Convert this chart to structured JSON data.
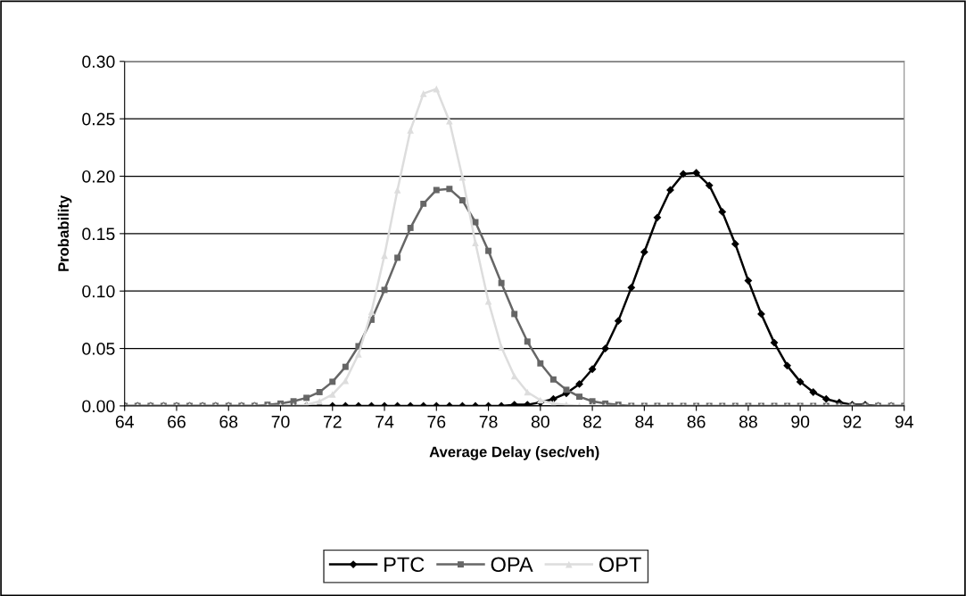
{
  "chart_data": {
    "type": "line",
    "xlabel": "Average Delay (sec/veh)",
    "ylabel": "Probability",
    "x": [
      64,
      64.5,
      65,
      65.5,
      66,
      66.5,
      67,
      67.5,
      68,
      68.5,
      69,
      69.5,
      70,
      70.5,
      71,
      71.5,
      72,
      72.5,
      73,
      73.5,
      74,
      74.5,
      75,
      75.5,
      76,
      76.5,
      77,
      77.5,
      78,
      78.5,
      79,
      79.5,
      80,
      80.5,
      81,
      81.5,
      82,
      82.5,
      83,
      83.5,
      84,
      84.5,
      85,
      85.5,
      86,
      86.5,
      87,
      87.5,
      88,
      88.5,
      89,
      89.5,
      90,
      90.5,
      91,
      91.5,
      92,
      92.5,
      93,
      93.5,
      94
    ],
    "series": [
      {
        "name": "PTC",
        "color": "#000000",
        "marker": "diamond",
        "values": [
          0,
          0,
          0,
          0,
          0,
          0,
          0,
          0,
          0,
          0,
          0,
          0,
          0,
          0,
          0,
          0,
          0,
          0,
          0,
          0,
          0,
          0,
          0,
          0,
          0,
          0,
          0,
          0,
          0,
          0,
          0.001,
          0.001,
          0.003,
          0.006,
          0.011,
          0.019,
          0.032,
          0.05,
          0.074,
          0.103,
          0.134,
          0.164,
          0.188,
          0.202,
          0.203,
          0.192,
          0.169,
          0.141,
          0.109,
          0.08,
          0.055,
          0.035,
          0.021,
          0.012,
          0.006,
          0.003,
          0.001,
          0.001,
          0,
          0,
          0
        ]
      },
      {
        "name": "OPA",
        "color": "#666666",
        "marker": "square",
        "values": [
          0,
          0,
          0,
          0,
          0,
          0,
          0,
          0,
          0,
          0,
          0,
          0.001,
          0.002,
          0.004,
          0.007,
          0.012,
          0.021,
          0.034,
          0.052,
          0.075,
          0.101,
          0.129,
          0.155,
          0.176,
          0.188,
          0.189,
          0.179,
          0.16,
          0.135,
          0.107,
          0.08,
          0.056,
          0.037,
          0.023,
          0.014,
          0.008,
          0.004,
          0.002,
          0.001,
          0,
          0,
          0,
          0,
          0,
          0,
          0,
          0,
          0,
          0,
          0,
          0,
          0,
          0,
          0,
          0,
          0,
          0,
          0,
          0,
          0,
          0
        ]
      },
      {
        "name": "OPT",
        "color": "#dddddd",
        "marker": "triangle",
        "values": [
          0,
          0,
          0,
          0,
          0,
          0,
          0,
          0,
          0,
          0,
          0,
          0,
          0,
          0,
          0.001,
          0.004,
          0.01,
          0.022,
          0.045,
          0.082,
          0.131,
          0.188,
          0.24,
          0.272,
          0.276,
          0.248,
          0.199,
          0.142,
          0.091,
          0.051,
          0.026,
          0.012,
          0.005,
          0.002,
          0.001,
          0,
          0,
          0,
          0,
          0,
          0,
          0,
          0,
          0,
          0,
          0,
          0,
          0,
          0,
          0,
          0,
          0,
          0,
          0,
          0,
          0,
          0,
          0,
          0,
          0,
          0
        ]
      }
    ],
    "xlim": [
      64,
      94
    ],
    "xticks": [
      64,
      66,
      68,
      70,
      72,
      74,
      76,
      78,
      80,
      82,
      84,
      86,
      88,
      90,
      92,
      94
    ],
    "ylim": [
      0,
      0.3
    ],
    "yticks": [
      {
        "value": 0,
        "label": "0.00"
      },
      {
        "value": 0.05,
        "label": "0.05"
      },
      {
        "value": 0.1,
        "label": "0.10"
      },
      {
        "value": 0.15,
        "label": "0.15"
      },
      {
        "value": 0.2,
        "label": "0.20"
      },
      {
        "value": 0.25,
        "label": "0.25"
      },
      {
        "value": 0.3,
        "label": "0.30"
      }
    ],
    "grid": "y",
    "legend": "bottom",
    "line_style": "solid"
  }
}
